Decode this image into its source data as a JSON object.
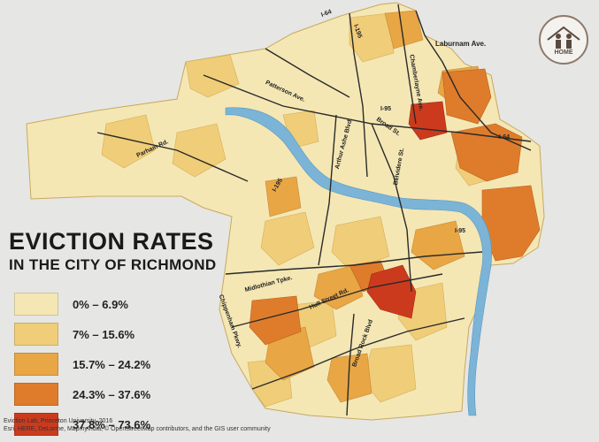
{
  "title": "EVICTION RATES",
  "subtitle": "IN THE CITY OF RICHMOND",
  "legend": [
    {
      "label": "0% – 6.9%",
      "color": "#f4e7b4"
    },
    {
      "label": "7% – 15.6%",
      "color": "#f0cd78"
    },
    {
      "label": "15.7% – 24.2%",
      "color": "#e8a645"
    },
    {
      "label": "24.3% – 37.6%",
      "color": "#df7c2b"
    },
    {
      "label": "37.8% – 73.6%",
      "color": "#cc3a1e"
    }
  ],
  "credits": [
    "Eviction Lab, Princeton University, 2016",
    "Esri, HERE, DeLorme, MapmyIndia, © OpenStreetMap contributors, and the GIS user community"
  ],
  "logo": {
    "text": "HOME"
  },
  "colors": {
    "water": "#7bb4d6",
    "road": "#2a2a2a",
    "background": "#e6e6e4"
  },
  "roads": {
    "i64_north": "I-64",
    "i195": "I-195",
    "laburnum": "Laburnam Ave.",
    "chamberlayne": "Chamberlayne Ave.",
    "patterson": "Patterson Ave.",
    "i95": "I-95",
    "arthur_ashe": "Arthur Ashe Blvd",
    "broad": "Broad St.",
    "i64_east": "I-64",
    "parham": "Parham Rd.",
    "i195_south": "I-195",
    "belvidere": "Belvidere St.",
    "i95_south": "I-95",
    "midlothian": "Midlothian Tpke.",
    "chippenham": "Chippenham Pkwy.",
    "hull": "Hull Street Rd.",
    "broad_rock": "Broad Rock Blvd"
  }
}
